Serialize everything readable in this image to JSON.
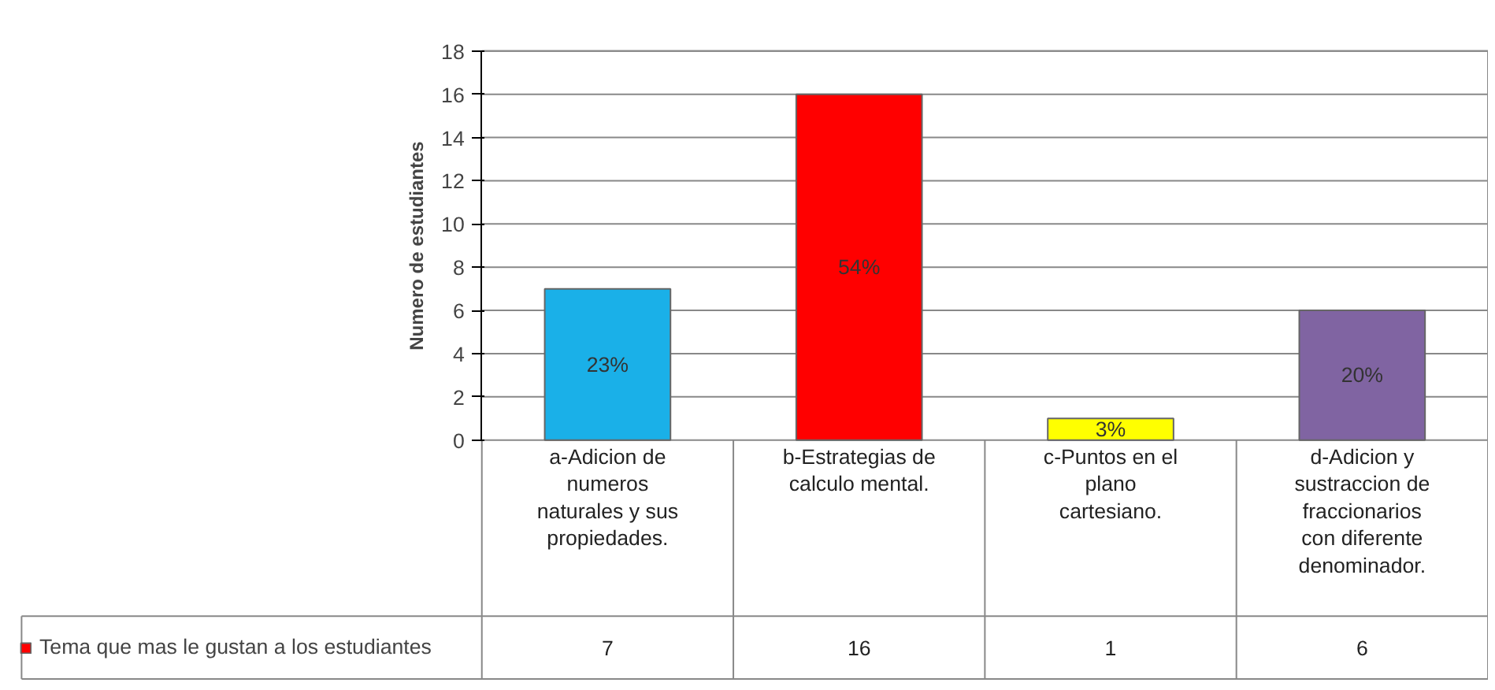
{
  "chart_data": {
    "type": "bar",
    "ylabel": "Numero de estudiantes",
    "categories": [
      "a-Adicion de numeros naturales y sus propiedades.",
      "b-Estrategias de calculo mental.",
      "c-Puntos en el plano cartesiano.",
      "d-Adicion y sustraccion de fraccionarios con diferente denominador."
    ],
    "series": [
      {
        "name": "Tema que mas le gustan a los estudiantes",
        "colors": [
          "#1ab0e8",
          "#ff0000",
          "#ffff00",
          "#8064a2"
        ],
        "values": [
          7,
          16,
          1,
          6
        ]
      }
    ],
    "annotations": [
      "23%",
      "54%",
      "3%",
      "20%"
    ],
    "ylim": [
      0,
      18
    ],
    "yticks": [
      0,
      2,
      4,
      6,
      8,
      10,
      12,
      14,
      16,
      18
    ],
    "grid": "y",
    "legend": "bottom left",
    "data_labels": true
  }
}
